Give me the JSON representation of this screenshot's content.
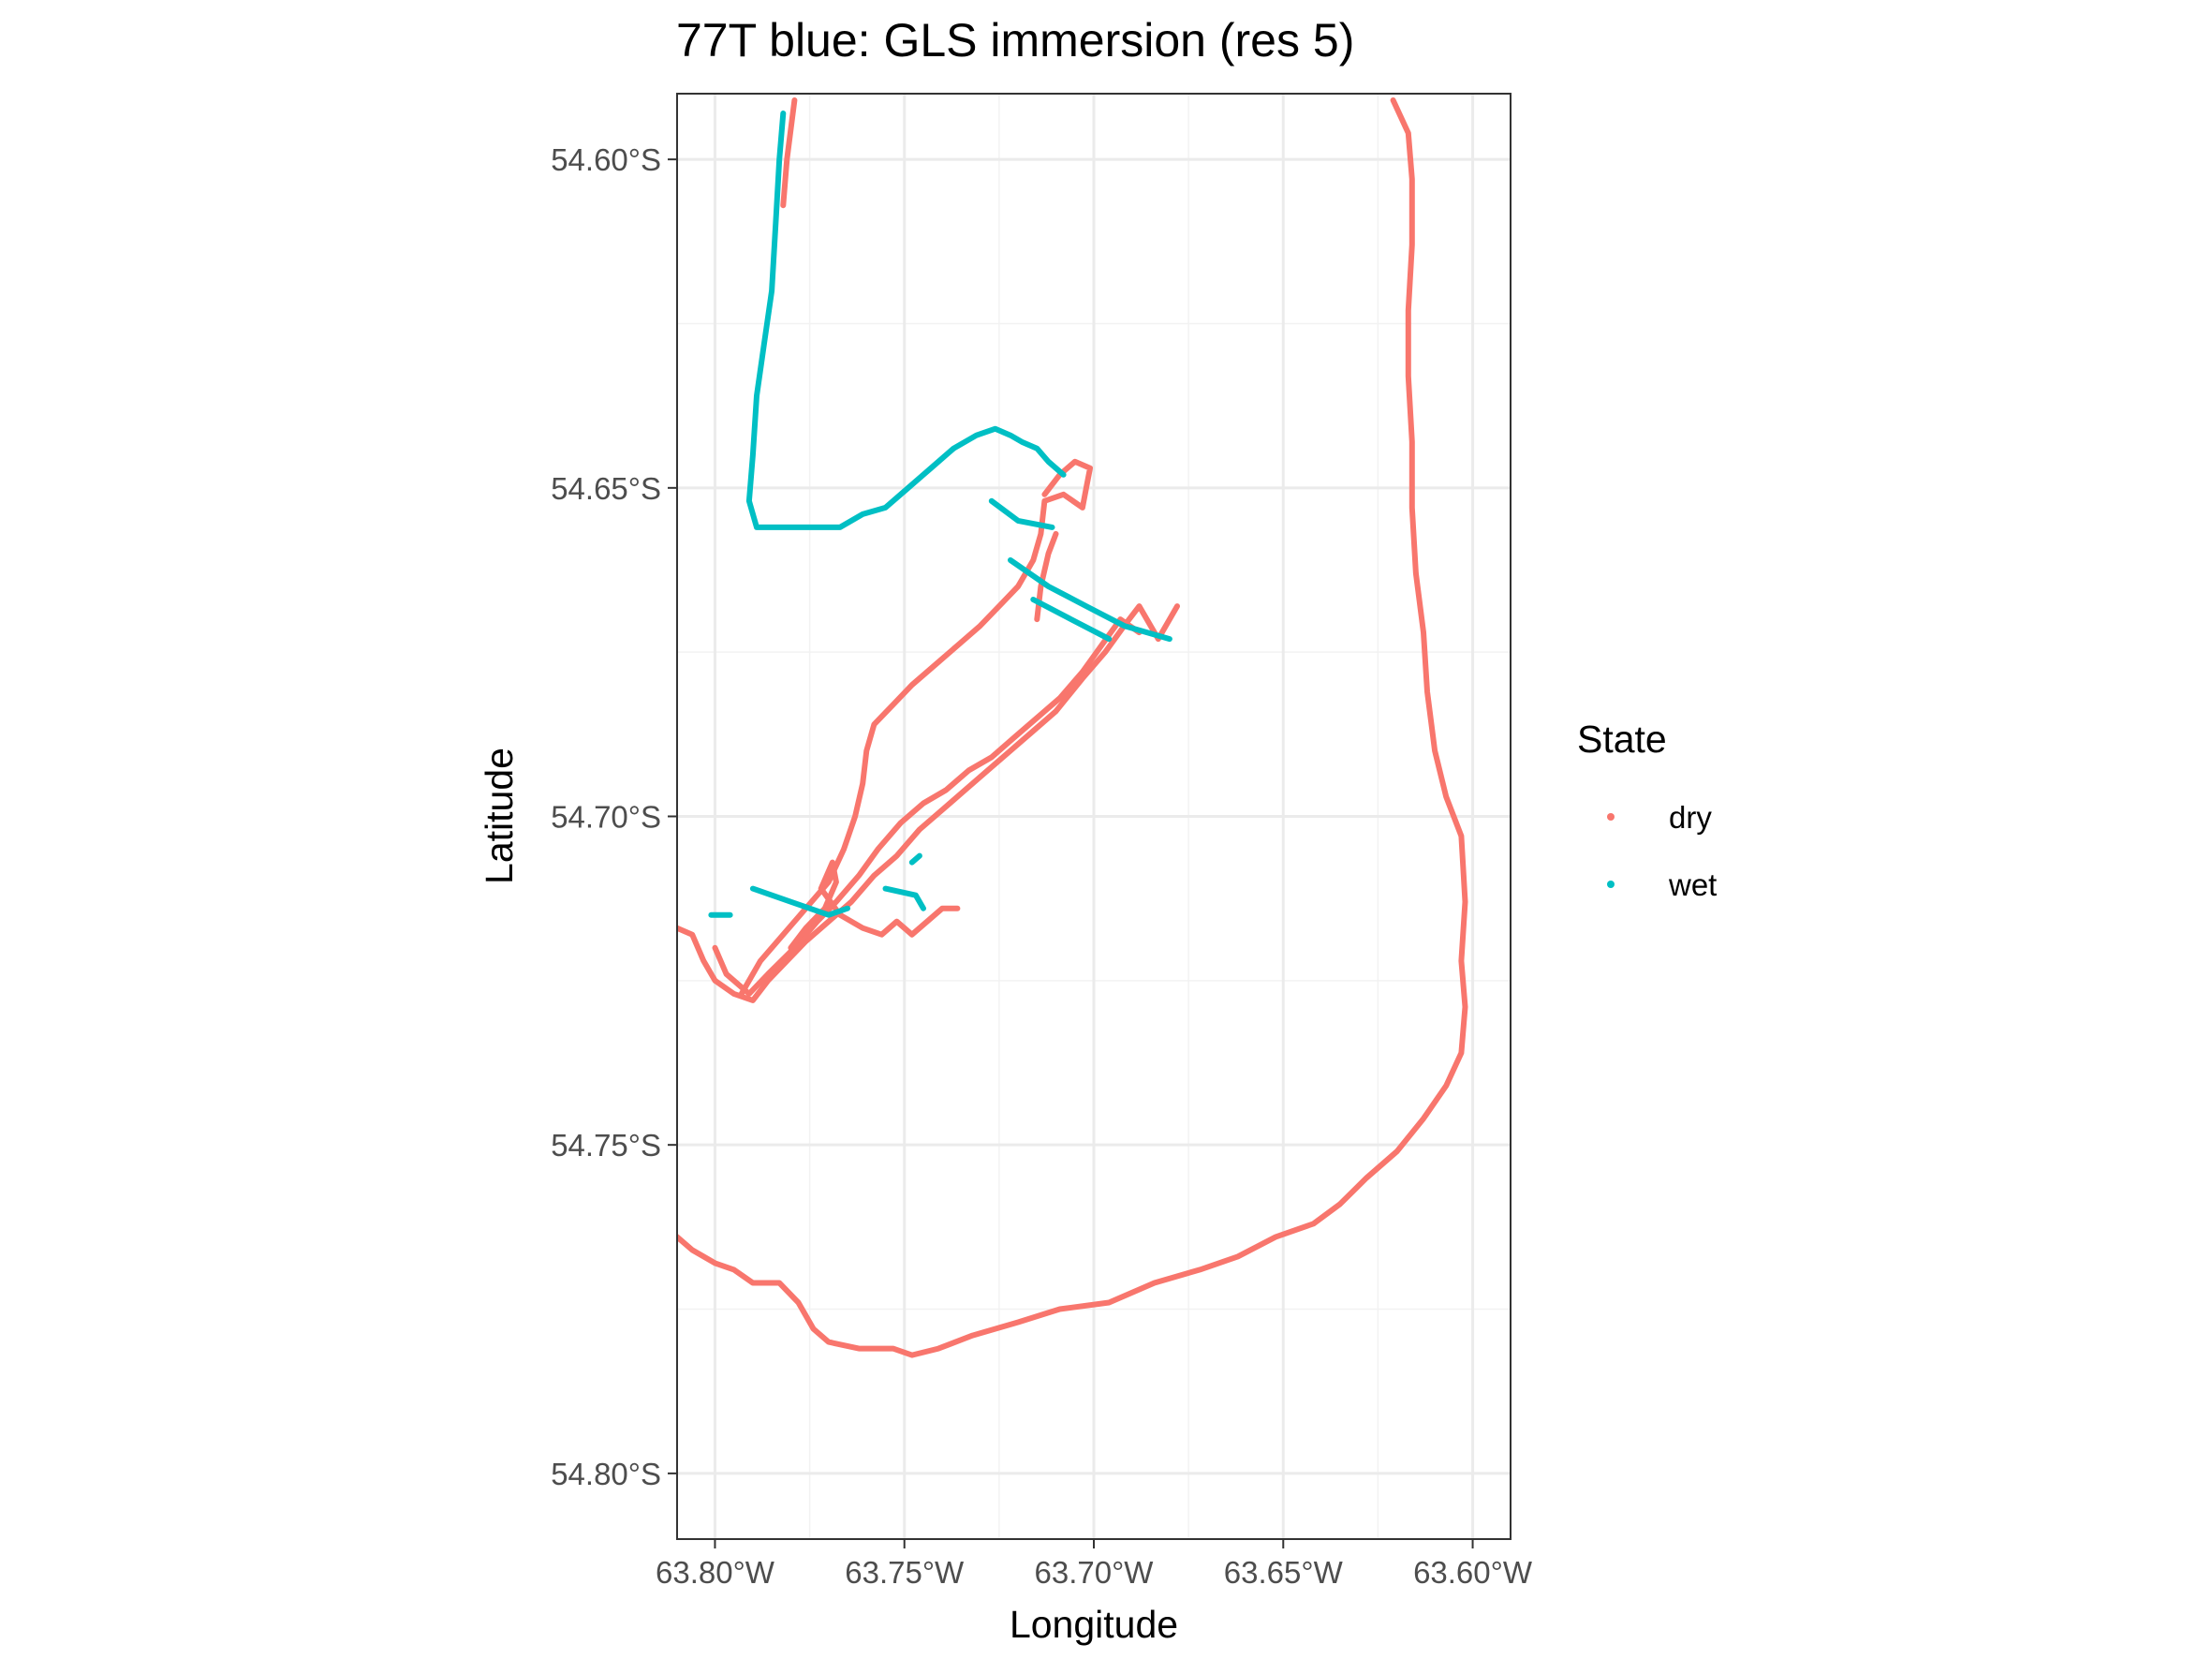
{
  "chart_data": {
    "type": "scatter",
    "title": "77T blue: GLS immersion (res 5)",
    "xlabel": "Longitude",
    "ylabel": "Latitude",
    "xlim": [
      -63.81,
      -63.59
    ],
    "ylim": [
      -54.81,
      -54.59
    ],
    "x_ticks": [
      {
        "value": -63.8,
        "label": "63.80°W"
      },
      {
        "value": -63.75,
        "label": "63.75°W"
      },
      {
        "value": -63.7,
        "label": "63.70°W"
      },
      {
        "value": -63.65,
        "label": "63.65°W"
      },
      {
        "value": -63.6,
        "label": "63.60°W"
      }
    ],
    "y_ticks": [
      {
        "value": -54.6,
        "label": "54.60°S"
      },
      {
        "value": -54.65,
        "label": "54.65°S"
      },
      {
        "value": -54.7,
        "label": "54.70°S"
      },
      {
        "value": -54.75,
        "label": "54.75°S"
      },
      {
        "value": -54.8,
        "label": "54.80°S"
      }
    ],
    "grid": true,
    "legend": {
      "title": "State",
      "position": "right"
    },
    "series": [
      {
        "name": "dry",
        "color": "#F8766D",
        "segments": [
          [
            [
              -63.779,
              -54.591
            ],
            [
              -63.781,
              -54.6
            ],
            [
              -63.782,
              -54.607
            ]
          ],
          [
            [
              -63.621,
              -54.591
            ],
            [
              -63.617,
              -54.596
            ],
            [
              -63.616,
              -54.603
            ],
            [
              -63.616,
              -54.613
            ],
            [
              -63.617,
              -54.623
            ],
            [
              -63.617,
              -54.633
            ],
            [
              -63.616,
              -54.643
            ],
            [
              -63.616,
              -54.653
            ],
            [
              -63.615,
              -54.663
            ],
            [
              -63.613,
              -54.672
            ],
            [
              -63.612,
              -54.681
            ],
            [
              -63.61,
              -54.69
            ],
            [
              -63.607,
              -54.697
            ],
            [
              -63.603,
              -54.703
            ],
            [
              -63.602,
              -54.713
            ],
            [
              -63.603,
              -54.722
            ],
            [
              -63.602,
              -54.729
            ],
            [
              -63.603,
              -54.736
            ],
            [
              -63.607,
              -54.741
            ],
            [
              -63.613,
              -54.746
            ],
            [
              -63.62,
              -54.751
            ],
            [
              -63.628,
              -54.755
            ],
            [
              -63.635,
              -54.759
            ],
            [
              -63.642,
              -54.762
            ],
            [
              -63.652,
              -54.764
            ],
            [
              -63.662,
              -54.767
            ],
            [
              -63.672,
              -54.769
            ],
            [
              -63.684,
              -54.771
            ],
            [
              -63.696,
              -54.774
            ],
            [
              -63.709,
              -54.775
            ],
            [
              -63.72,
              -54.777
            ],
            [
              -63.732,
              -54.779
            ],
            [
              -63.741,
              -54.781
            ],
            [
              -63.748,
              -54.782
            ],
            [
              -63.753,
              -54.781
            ],
            [
              -63.762,
              -54.781
            ],
            [
              -63.77,
              -54.78
            ],
            [
              -63.774,
              -54.778
            ],
            [
              -63.778,
              -54.774
            ],
            [
              -63.783,
              -54.771
            ],
            [
              -63.79,
              -54.771
            ],
            [
              -63.795,
              -54.769
            ],
            [
              -63.8,
              -54.768
            ],
            [
              -63.806,
              -54.766
            ],
            [
              -63.81,
              -54.764
            ]
          ],
          [
            [
              -63.81,
              -54.717
            ],
            [
              -63.806,
              -54.718
            ],
            [
              -63.803,
              -54.722
            ],
            [
              -63.8,
              -54.725
            ],
            [
              -63.795,
              -54.727
            ],
            [
              -63.79,
              -54.728
            ],
            [
              -63.786,
              -54.725
            ],
            [
              -63.781,
              -54.722
            ],
            [
              -63.776,
              -54.719
            ],
            [
              -63.77,
              -54.716
            ],
            [
              -63.764,
              -54.713
            ],
            [
              -63.758,
              -54.709
            ],
            [
              -63.752,
              -54.706
            ],
            [
              -63.746,
              -54.702
            ],
            [
              -63.74,
              -54.699
            ],
            [
              -63.734,
              -54.696
            ],
            [
              -63.728,
              -54.693
            ],
            [
              -63.722,
              -54.69
            ],
            [
              -63.716,
              -54.687
            ],
            [
              -63.71,
              -54.684
            ],
            [
              -63.703,
              -54.679
            ],
            [
              -63.697,
              -54.675
            ],
            [
              -63.692,
              -54.671
            ],
            [
              -63.688,
              -54.668
            ],
            [
              -63.683,
              -54.673
            ],
            [
              -63.678,
              -54.668
            ]
          ],
          [
            [
              -63.8,
              -54.72
            ],
            [
              -63.797,
              -54.724
            ],
            [
              -63.791,
              -54.727
            ],
            [
              -63.786,
              -54.724
            ],
            [
              -63.779,
              -54.72
            ],
            [
              -63.773,
              -54.716
            ],
            [
              -63.768,
              -54.713
            ],
            [
              -63.762,
              -54.709
            ],
            [
              -63.757,
              -54.705
            ],
            [
              -63.751,
              -54.701
            ],
            [
              -63.745,
              -54.698
            ],
            [
              -63.739,
              -54.696
            ],
            [
              -63.733,
              -54.693
            ],
            [
              -63.727,
              -54.691
            ],
            [
              -63.721,
              -54.688
            ],
            [
              -63.715,
              -54.685
            ],
            [
              -63.709,
              -54.682
            ],
            [
              -63.703,
              -54.678
            ],
            [
              -63.698,
              -54.674
            ],
            [
              -63.693,
              -54.67
            ],
            [
              -63.688,
              -54.672
            ]
          ],
          [
            [
              -63.793,
              -54.727
            ],
            [
              -63.788,
              -54.722
            ],
            [
              -63.782,
              -54.718
            ],
            [
              -63.776,
              -54.714
            ],
            [
              -63.77,
              -54.71
            ],
            [
              -63.766,
              -54.705
            ],
            [
              -63.763,
              -54.7
            ],
            [
              -63.761,
              -54.695
            ],
            [
              -63.76,
              -54.69
            ],
            [
              -63.758,
              -54.686
            ],
            [
              -63.753,
              -54.683
            ],
            [
              -63.748,
              -54.68
            ],
            [
              -63.742,
              -54.677
            ],
            [
              -63.736,
              -54.674
            ],
            [
              -63.73,
              -54.671
            ],
            [
              -63.725,
              -54.668
            ],
            [
              -63.72,
              -54.665
            ],
            [
              -63.716,
              -54.661
            ],
            [
              -63.714,
              -54.657
            ],
            [
              -63.713,
              -54.652
            ],
            [
              -63.708,
              -54.651
            ],
            [
              -63.703,
              -54.653
            ],
            [
              -63.702,
              -54.65
            ],
            [
              -63.701,
              -54.647
            ],
            [
              -63.705,
              -54.646
            ],
            [
              -63.709,
              -54.648
            ],
            [
              -63.713,
              -54.651
            ]
          ],
          [
            [
              -63.78,
              -54.72
            ],
            [
              -63.776,
              -54.717
            ],
            [
              -63.771,
              -54.714
            ],
            [
              -63.768,
              -54.71
            ],
            [
              -63.769,
              -54.707
            ],
            [
              -63.772,
              -54.711
            ],
            [
              -63.767,
              -54.715
            ],
            [
              -63.761,
              -54.717
            ],
            [
              -63.756,
              -54.718
            ],
            [
              -63.752,
              -54.716
            ],
            [
              -63.748,
              -54.718
            ],
            [
              -63.744,
              -54.716
            ],
            [
              -63.74,
              -54.714
            ],
            [
              -63.736,
              -54.714
            ]
          ],
          [
            [
              -63.715,
              -54.67
            ],
            [
              -63.714,
              -54.665
            ],
            [
              -63.712,
              -54.66
            ],
            [
              -63.71,
              -54.657
            ]
          ]
        ]
      },
      {
        "name": "wet",
        "color": "#00BFC4",
        "segments": [
          [
            [
              -63.782,
              -54.593
            ],
            [
              -63.783,
              -54.6
            ],
            [
              -63.784,
              -54.61
            ],
            [
              -63.785,
              -54.62
            ],
            [
              -63.787,
              -54.628
            ],
            [
              -63.789,
              -54.636
            ],
            [
              -63.79,
              -54.645
            ],
            [
              -63.791,
              -54.652
            ],
            [
              -63.789,
              -54.656
            ],
            [
              -63.785,
              -54.656
            ],
            [
              -63.779,
              -54.656
            ],
            [
              -63.772,
              -54.656
            ],
            [
              -63.767,
              -54.656
            ],
            [
              -63.761,
              -54.654
            ],
            [
              -63.755,
              -54.653
            ],
            [
              -63.749,
              -54.65
            ],
            [
              -63.743,
              -54.647
            ],
            [
              -63.737,
              -54.644
            ],
            [
              -63.731,
              -54.642
            ],
            [
              -63.726,
              -54.641
            ],
            [
              -63.722,
              -54.642
            ],
            [
              -63.719,
              -54.643
            ],
            [
              -63.715,
              -54.644
            ],
            [
              -63.712,
              -54.646
            ],
            [
              -63.708,
              -54.648
            ]
          ],
          [
            [
              -63.727,
              -54.652
            ],
            [
              -63.72,
              -54.655
            ],
            [
              -63.711,
              -54.656
            ]
          ],
          [
            [
              -63.722,
              -54.661
            ],
            [
              -63.712,
              -54.665
            ],
            [
              -63.702,
              -54.668
            ],
            [
              -63.692,
              -54.671
            ],
            [
              -63.68,
              -54.673
            ]
          ],
          [
            [
              -63.716,
              -54.667
            ],
            [
              -63.706,
              -54.67
            ],
            [
              -63.696,
              -54.673
            ]
          ],
          [
            [
              -63.801,
              -54.715
            ],
            [
              -63.796,
              -54.715
            ]
          ],
          [
            [
              -63.79,
              -54.711
            ],
            [
              -63.78,
              -54.713
            ],
            [
              -63.77,
              -54.715
            ],
            [
              -63.765,
              -54.714
            ]
          ],
          [
            [
              -63.755,
              -54.711
            ],
            [
              -63.747,
              -54.712
            ],
            [
              -63.745,
              -54.714
            ]
          ],
          [
            [
              -63.748,
              -54.707
            ],
            [
              -63.746,
              -54.706
            ]
          ]
        ]
      }
    ]
  }
}
